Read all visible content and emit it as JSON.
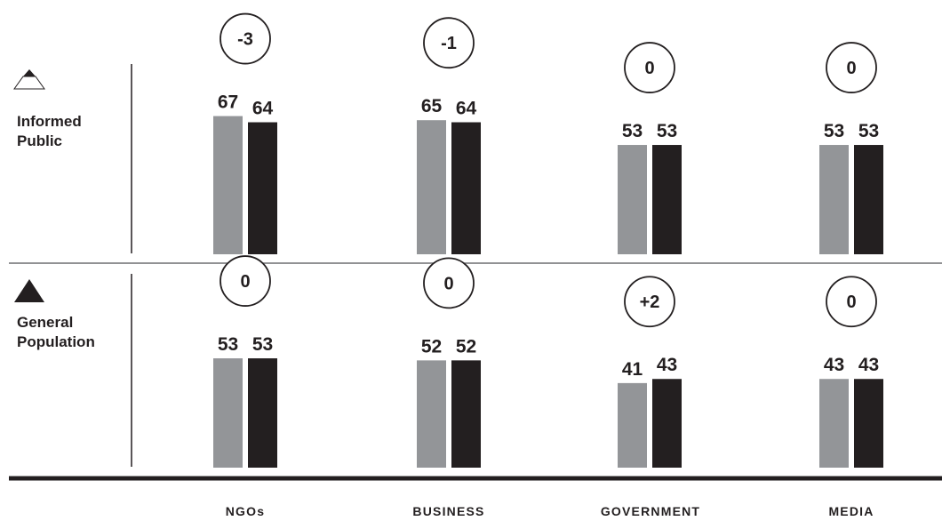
{
  "colors": {
    "previous": "#939598",
    "current": "#231f20",
    "line": "#231f20",
    "thin_line": "#6d6e71"
  },
  "panels": [
    {
      "label_line1": "Informed",
      "label_line2": "Public",
      "icon": "informed-public-triangle-icon"
    },
    {
      "label_line1": "General",
      "label_line2": "Population",
      "icon": "general-population-triangle-icon"
    }
  ],
  "chart_data": [
    {
      "type": "bar",
      "categories": [
        "NGOs",
        "BUSINESS",
        "GOVERNMENT",
        "MEDIA"
      ],
      "series": [
        {
          "values": [
            67,
            65,
            53,
            53
          ]
        },
        {
          "values": [
            64,
            64,
            53,
            53
          ]
        }
      ],
      "change_labels": [
        "-3",
        "-1",
        "0",
        "0"
      ],
      "title": "",
      "xlabel": "",
      "ylabel": "",
      "ylim": [
        0,
        100
      ],
      "grid": false
    },
    {
      "type": "bar",
      "categories": [
        "NGOs",
        "BUSINESS",
        "GOVERNMENT",
        "MEDIA"
      ],
      "series": [
        {
          "values": [
            53,
            52,
            41,
            43
          ]
        },
        {
          "values": [
            53,
            52,
            43,
            43
          ]
        }
      ],
      "change_labels": [
        "0",
        "0",
        "+2",
        "0"
      ],
      "title": "",
      "xlabel": "",
      "ylabel": "",
      "ylim": [
        0,
        100
      ],
      "grid": false
    }
  ]
}
